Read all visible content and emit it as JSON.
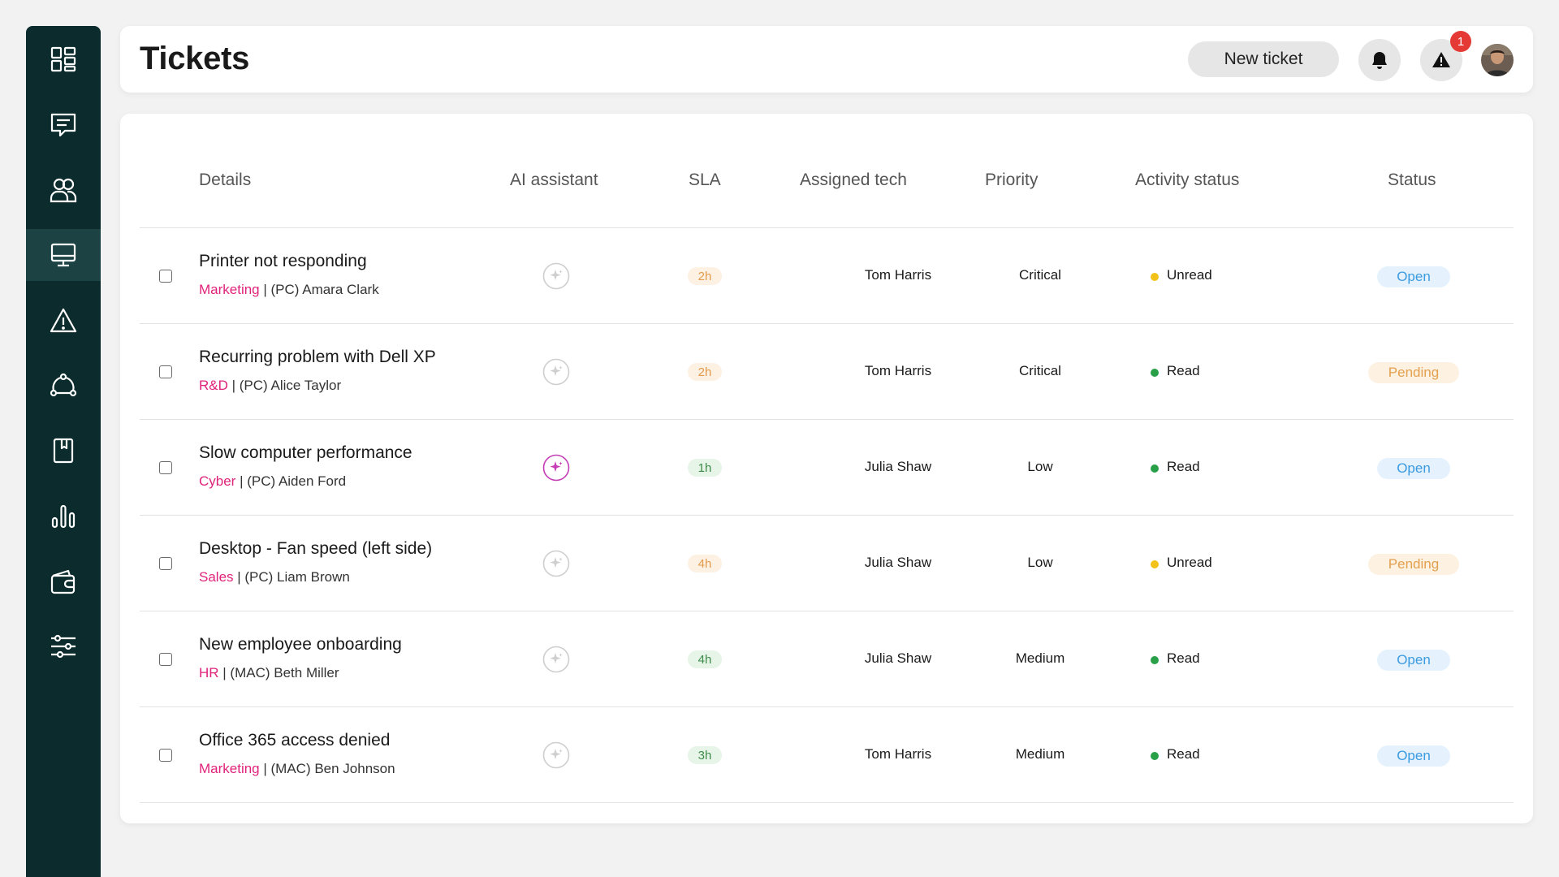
{
  "header": {
    "title": "Tickets",
    "new_ticket_label": "New ticket",
    "alert_count": "1"
  },
  "sidebar": {
    "items": [
      {
        "icon": "dashboard-icon",
        "active": false
      },
      {
        "icon": "chat-icon",
        "active": false
      },
      {
        "icon": "users-icon",
        "active": false
      },
      {
        "icon": "monitor-icon",
        "active": true
      },
      {
        "icon": "warning-icon",
        "active": false
      },
      {
        "icon": "network-icon",
        "active": false
      },
      {
        "icon": "book-icon",
        "active": false
      },
      {
        "icon": "bar-chart-icon",
        "active": false
      },
      {
        "icon": "wallet-icon",
        "active": false
      },
      {
        "icon": "sliders-icon",
        "active": false
      }
    ]
  },
  "table": {
    "columns": {
      "details": "Details",
      "ai": "AI assistant",
      "sla": "SLA",
      "tech": "Assigned tech",
      "priority": "Priority",
      "activity": "Activity status",
      "status": "Status"
    },
    "rows": [
      {
        "title": "Printer not responding",
        "dept": "Marketing",
        "rest": " | (PC) Amara Clark",
        "ai_active": false,
        "sla": "2h",
        "sla_kind": "warn",
        "tech": "Tom Harris",
        "priority": "Critical",
        "activity": "Unread",
        "status": "Open"
      },
      {
        "title": "Recurring problem with Dell XP",
        "dept": "R&D",
        "rest": " | (PC) Alice Taylor",
        "ai_active": false,
        "sla": "2h",
        "sla_kind": "warn",
        "tech": "Tom Harris",
        "priority": "Critical",
        "activity": "Read",
        "status": "Pending"
      },
      {
        "title": "Slow computer performance",
        "dept": "Cyber",
        "rest": " | (PC) Aiden Ford",
        "ai_active": true,
        "sla": "1h",
        "sla_kind": "ok",
        "tech": "Julia Shaw",
        "priority": "Low",
        "activity": "Read",
        "status": "Open"
      },
      {
        "title": "Desktop - Fan speed (left side)",
        "dept": "Sales",
        "rest": " | (PC) Liam Brown",
        "ai_active": false,
        "sla": "4h",
        "sla_kind": "warn",
        "tech": "Julia Shaw",
        "priority": "Low",
        "activity": "Unread",
        "status": "Pending"
      },
      {
        "title": "New employee onboarding",
        "dept": "HR",
        "rest": " | (MAC) Beth Miller",
        "ai_active": false,
        "sla": "4h",
        "sla_kind": "ok",
        "tech": "Julia Shaw",
        "priority": "Medium",
        "activity": "Read",
        "status": "Open"
      },
      {
        "title": "Office 365 access denied",
        "dept": "Marketing",
        "rest": " | (MAC) Ben Johnson",
        "ai_active": false,
        "sla": "3h",
        "sla_kind": "ok",
        "tech": "Tom Harris",
        "priority": "Medium",
        "activity": "Read",
        "status": "Open"
      }
    ]
  },
  "colors": {
    "sidebar": "#0b2b2d",
    "dept_accent": "#e0237a",
    "unread_dot": "#f2c21b",
    "read_dot": "#27a047",
    "open": "#3b9be0",
    "pending": "#e3a04e",
    "alert_badge": "#e53935"
  }
}
